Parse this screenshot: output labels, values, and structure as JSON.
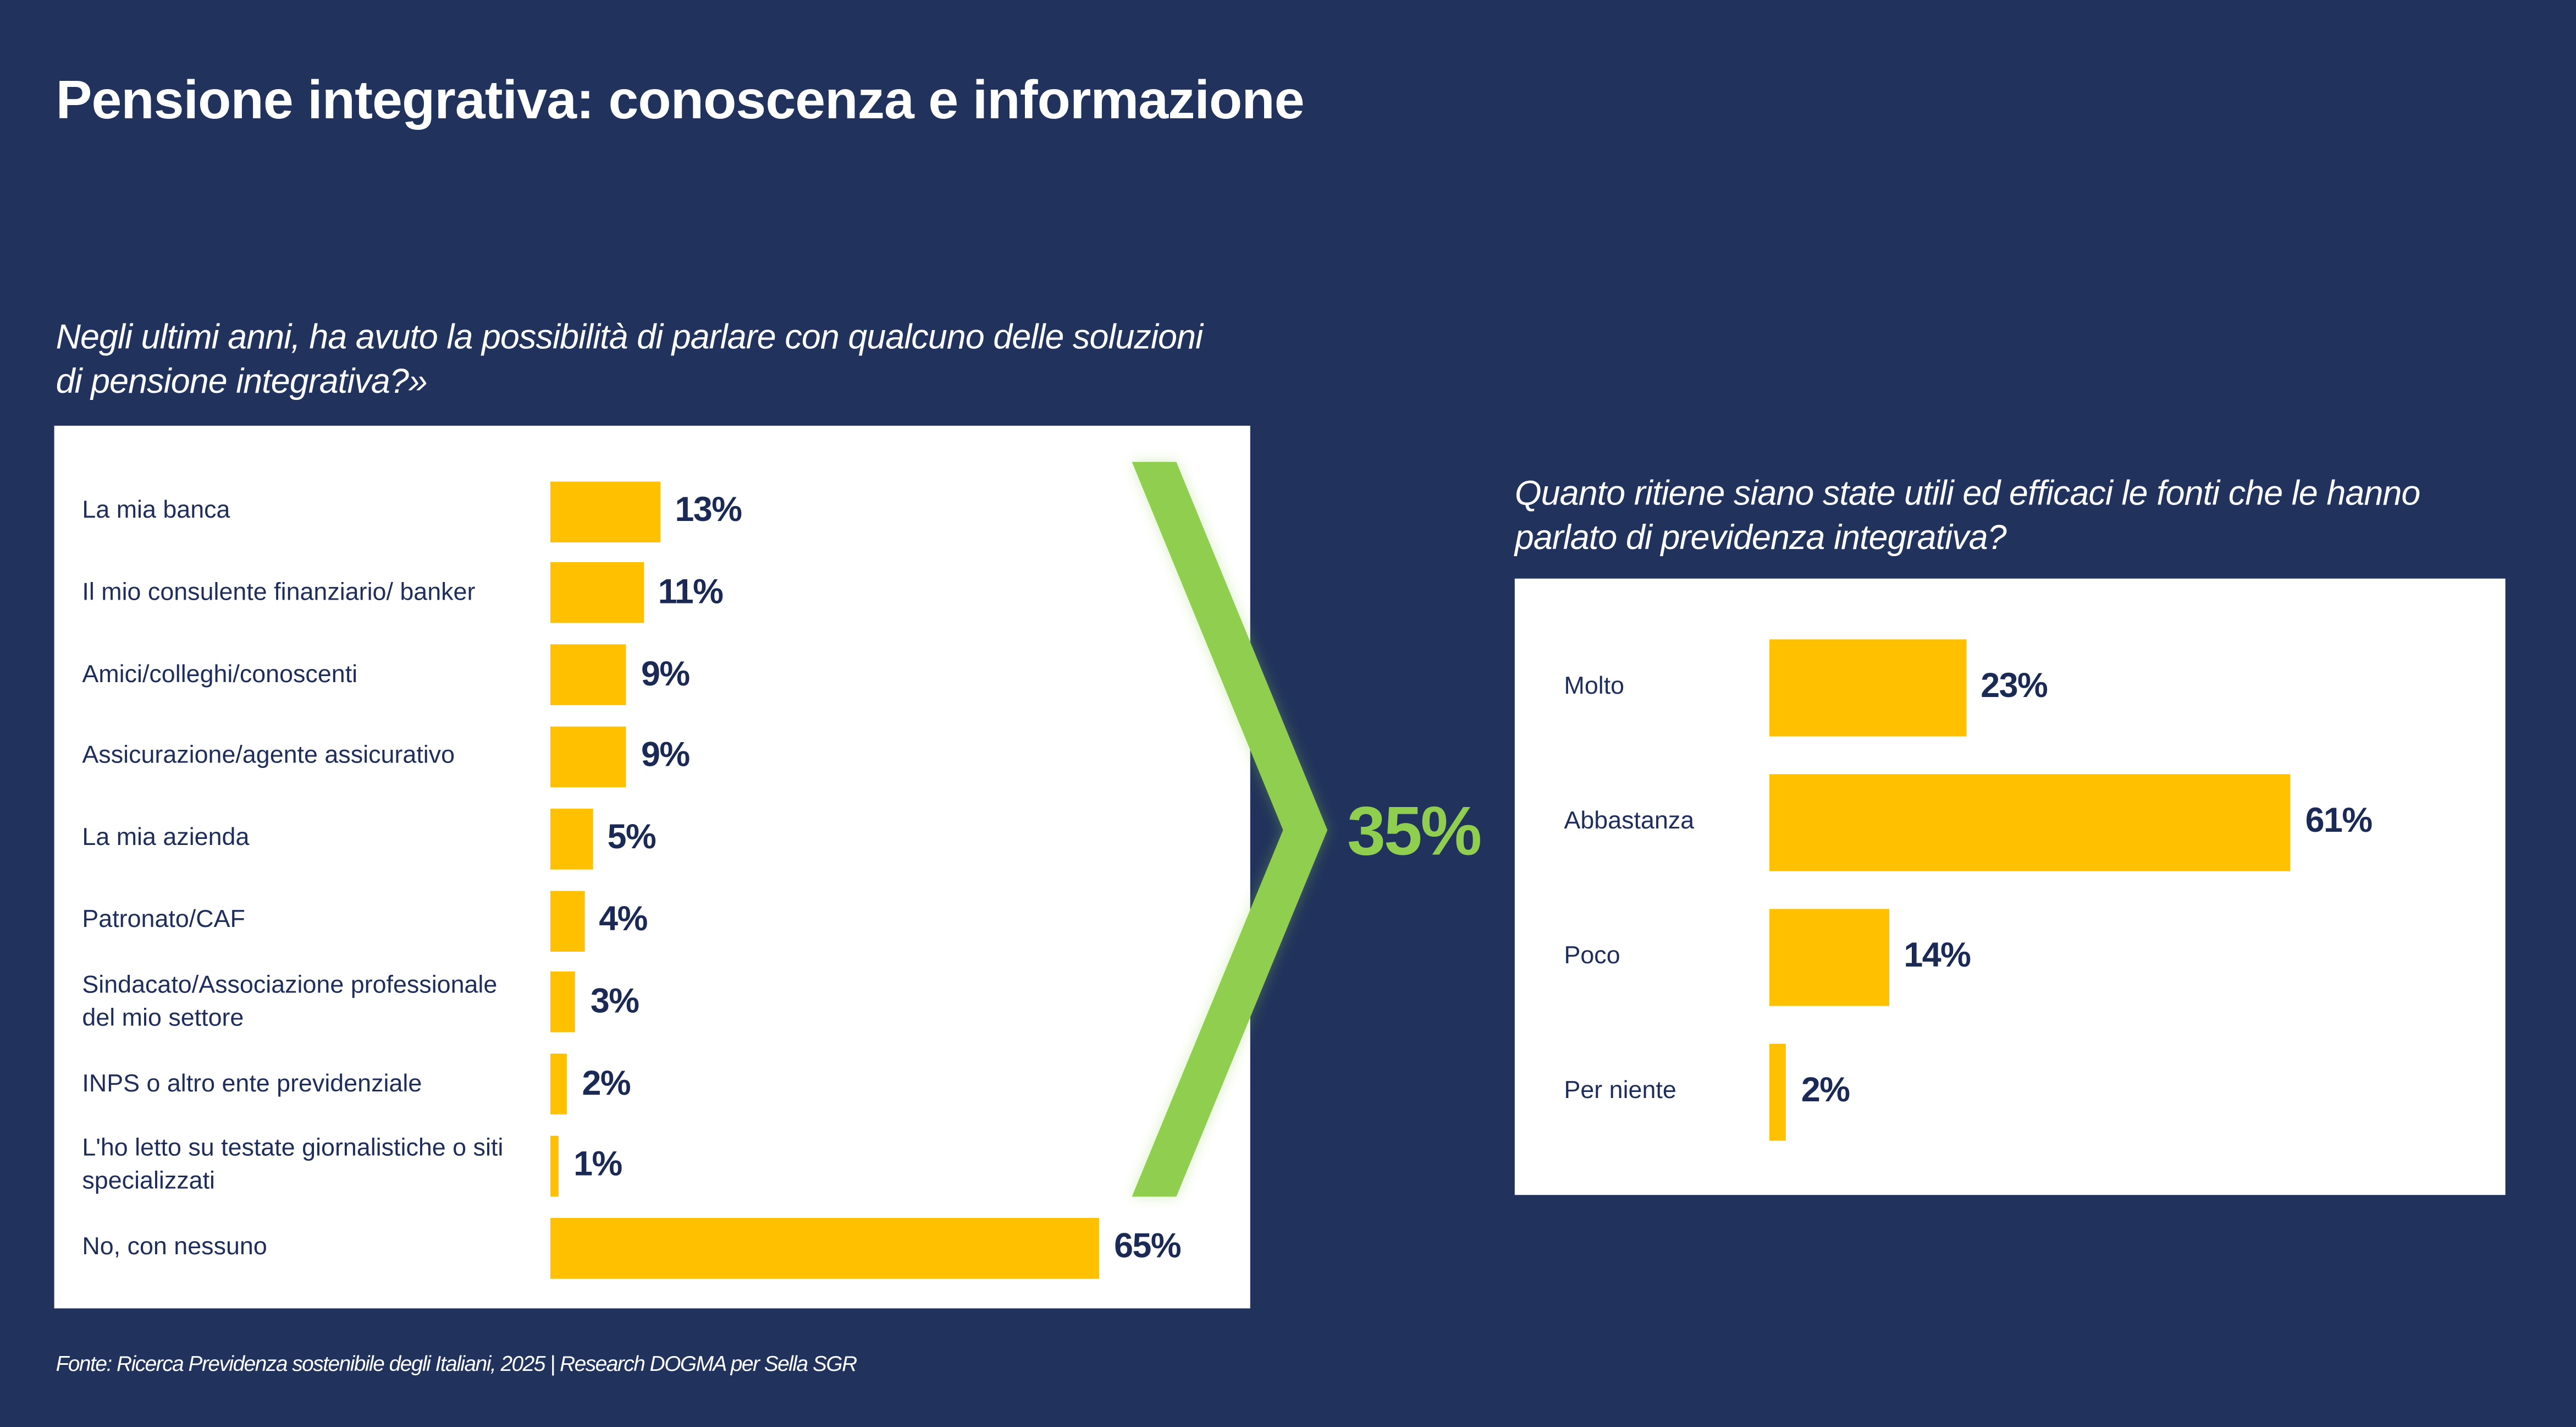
{
  "title": "Pensione integrativa: conoscenza e informazione",
  "source": "Fonte: Ricerca Previdenza sostenibile degli Italiani, 2025 | Research DOGMA per Sella SGR",
  "callout": {
    "value": "35%",
    "color": "#8fce4f"
  },
  "colors": {
    "background": "#21335c",
    "bar": "#ffc000",
    "text": "#1b2a55"
  },
  "chart_data": [
    {
      "type": "bar",
      "orientation": "horizontal",
      "title": "Negli ultimi anni, ha avuto la possibilità di parlare con qualcuno delle soluzioni di pensione integrativa?»",
      "categories": [
        "La mia banca",
        "Il mio consulente finanziario/ banker",
        "Amici/colleghi/conoscenti",
        "Assicurazione/agente assicurativo",
        "La mia azienda",
        "Patronato/CAF",
        "Sindacato/Associazione professionale del mio settore",
        "INPS o altro ente previdenziale",
        "L'ho letto su testate giornalistiche o siti specializzati",
        "No, con nessuno"
      ],
      "values": [
        13,
        11,
        9,
        9,
        5,
        4,
        3,
        2,
        1,
        65
      ],
      "labels": [
        "13%",
        "11%",
        "9%",
        "9%",
        "5%",
        "4%",
        "3%",
        "2%",
        "1%",
        "65%"
      ],
      "unit": "%"
    },
    {
      "type": "bar",
      "orientation": "horizontal",
      "title": "Quanto ritiene siano state utili ed efficaci le fonti che le hanno parlato di previdenza integrativa?",
      "categories": [
        "Molto",
        "Abbastanza",
        "Poco",
        "Per niente"
      ],
      "values": [
        23,
        61,
        14,
        2
      ],
      "labels": [
        "23%",
        "61%",
        "14%",
        "2%"
      ],
      "unit": "%"
    }
  ]
}
